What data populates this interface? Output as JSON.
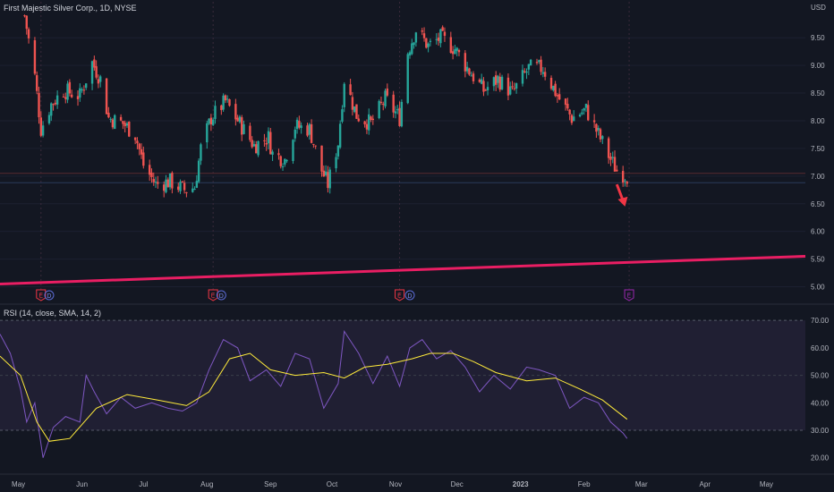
{
  "header": {
    "title": "First Majestic Silver Corp., 1D, NYSE",
    "currency": "USD"
  },
  "rsi_panel": {
    "label": "RSI (14, close, SMA, 14, 2)"
  },
  "colors": {
    "background": "#131722",
    "bullish": "#26a69a",
    "bearish": "#ef5350",
    "trendline": "#e91e63",
    "rsi_line": "#7e57c2",
    "rsi_ma": "#ffeb3b",
    "rsi_band": "#2a2540",
    "earnings_marker": "#f23645",
    "dividend_marker": "#5b6bd6",
    "upcoming_earnings": "#9c27b0"
  },
  "chart_data": [
    {
      "type": "candlestick",
      "title": "First Majestic Silver Corp., 1D, NYSE",
      "ylabel": "USD",
      "ylim": [
        4.75,
        10.15
      ],
      "y_ticks": [
        5.0,
        5.5,
        6.0,
        6.5,
        7.0,
        7.5,
        8.0,
        8.5,
        9.0,
        9.5
      ],
      "x_ticks": [
        "May",
        "Jun",
        "Jul",
        "Aug",
        "Sep",
        "Oct",
        "Nov",
        "Dec",
        "2023",
        "Feb",
        "Mar",
        "Apr",
        "May"
      ],
      "x_range": [
        "2022-04-22",
        "2023-05-20"
      ],
      "close_trend": [
        [
          "2022-05-04",
          9.9
        ],
        [
          "2022-05-09",
          8.8
        ],
        [
          "2022-05-12",
          7.85
        ],
        [
          "2022-05-17",
          8.3
        ],
        [
          "2022-05-23",
          8.55
        ],
        [
          "2022-05-31",
          8.45
        ],
        [
          "2022-06-06",
          9.05
        ],
        [
          "2022-06-10",
          8.75
        ],
        [
          "2022-06-14",
          8.05
        ],
        [
          "2022-06-21",
          7.95
        ],
        [
          "2022-06-27",
          7.75
        ],
        [
          "2022-07-01",
          7.2
        ],
        [
          "2022-07-07",
          6.85
        ],
        [
          "2022-07-14",
          6.9
        ],
        [
          "2022-07-21",
          6.75
        ],
        [
          "2022-07-26",
          6.8
        ],
        [
          "2022-07-29",
          7.5
        ],
        [
          "2022-08-03",
          8.05
        ],
        [
          "2022-08-10",
          8.35
        ],
        [
          "2022-08-17",
          7.95
        ],
        [
          "2022-08-24",
          7.55
        ],
        [
          "2022-08-31",
          7.7
        ],
        [
          "2022-09-02",
          7.4
        ],
        [
          "2022-09-08",
          7.3
        ],
        [
          "2022-09-13",
          7.9
        ],
        [
          "2022-09-20",
          7.85
        ],
        [
          "2022-09-26",
          7.1
        ],
        [
          "2022-09-29",
          6.85
        ],
        [
          "2022-10-04",
          7.6
        ],
        [
          "2022-10-07",
          8.75
        ],
        [
          "2022-10-13",
          8.1
        ],
        [
          "2022-10-20",
          7.95
        ],
        [
          "2022-10-27",
          8.4
        ],
        [
          "2022-11-03",
          8.05
        ],
        [
          "2022-11-07",
          9.25
        ],
        [
          "2022-11-11",
          9.65
        ],
        [
          "2022-11-17",
          9.35
        ],
        [
          "2022-11-23",
          9.5
        ],
        [
          "2022-11-30",
          9.3
        ],
        [
          "2022-12-07",
          8.9
        ],
        [
          "2022-12-14",
          8.55
        ],
        [
          "2022-12-21",
          8.75
        ],
        [
          "2022-12-28",
          8.5
        ],
        [
          "2023-01-05",
          8.95
        ],
        [
          "2023-01-12",
          8.95
        ],
        [
          "2023-01-19",
          8.45
        ],
        [
          "2023-01-26",
          8.05
        ],
        [
          "2023-02-02",
          8.2
        ],
        [
          "2023-02-08",
          7.75
        ],
        [
          "2023-02-14",
          7.3
        ],
        [
          "2023-02-17",
          7.1
        ],
        [
          "2023-02-22",
          7.0
        ]
      ],
      "last_price": 7.05,
      "reference_level": 6.88,
      "trendline": {
        "start": [
          "2022-04-22",
          5.05
        ],
        "end": [
          "2023-05-20",
          5.55
        ]
      },
      "arrow": {
        "from": [
          "2023-02-17",
          6.85
        ],
        "to": [
          "2023-02-21",
          6.45
        ]
      },
      "event_lines": [
        "2022-05-12",
        "2022-08-04",
        "2022-11-03",
        "2023-02-23"
      ],
      "events": [
        {
          "date": "2022-05-12",
          "type": "earnings",
          "label": "E"
        },
        {
          "date": "2022-05-16",
          "type": "dividend",
          "label": "D"
        },
        {
          "date": "2022-08-04",
          "type": "earnings",
          "label": "E"
        },
        {
          "date": "2022-08-08",
          "type": "dividend",
          "label": "D"
        },
        {
          "date": "2022-11-03",
          "type": "earnings",
          "label": "E"
        },
        {
          "date": "2022-11-08",
          "type": "dividend",
          "label": "D"
        },
        {
          "date": "2023-02-23",
          "type": "upcoming-earnings",
          "label": "E"
        }
      ]
    },
    {
      "type": "line",
      "title": "RSI (14, close, SMA, 14, 2)",
      "ylim": [
        16,
        72
      ],
      "y_ticks": [
        20.0,
        30.0,
        40.0,
        50.0,
        60.0,
        70.0
      ],
      "band": [
        30,
        70
      ],
      "series": [
        {
          "name": "RSI",
          "points": [
            [
              "2022-04-22",
              65
            ],
            [
              "2022-04-27",
              58
            ],
            [
              "2022-05-02",
              45
            ],
            [
              "2022-05-05",
              33
            ],
            [
              "2022-05-09",
              40
            ],
            [
              "2022-05-13",
              20
            ],
            [
              "2022-05-18",
              31
            ],
            [
              "2022-05-24",
              35
            ],
            [
              "2022-05-31",
              33
            ],
            [
              "2022-06-03",
              50
            ],
            [
              "2022-06-07",
              44
            ],
            [
              "2022-06-13",
              36
            ],
            [
              "2022-06-20",
              42
            ],
            [
              "2022-06-27",
              38
            ],
            [
              "2022-07-05",
              40
            ],
            [
              "2022-07-13",
              38
            ],
            [
              "2022-07-20",
              37
            ],
            [
              "2022-07-27",
              40
            ],
            [
              "2022-08-02",
              52
            ],
            [
              "2022-08-09",
              63
            ],
            [
              "2022-08-16",
              60
            ],
            [
              "2022-08-22",
              48
            ],
            [
              "2022-08-30",
              52
            ],
            [
              "2022-09-06",
              46
            ],
            [
              "2022-09-13",
              58
            ],
            [
              "2022-09-20",
              56
            ],
            [
              "2022-09-27",
              38
            ],
            [
              "2022-10-04",
              47
            ],
            [
              "2022-10-07",
              66
            ],
            [
              "2022-10-14",
              58
            ],
            [
              "2022-10-21",
              47
            ],
            [
              "2022-10-28",
              57
            ],
            [
              "2022-11-03",
              46
            ],
            [
              "2022-11-08",
              60
            ],
            [
              "2022-11-14",
              63
            ],
            [
              "2022-11-21",
              56
            ],
            [
              "2022-11-28",
              59
            ],
            [
              "2022-12-05",
              53
            ],
            [
              "2022-12-12",
              44
            ],
            [
              "2022-12-19",
              50
            ],
            [
              "2022-12-27",
              45
            ],
            [
              "2023-01-04",
              53
            ],
            [
              "2023-01-10",
              52
            ],
            [
              "2023-01-18",
              50
            ],
            [
              "2023-01-25",
              38
            ],
            [
              "2023-02-01",
              42
            ],
            [
              "2023-02-08",
              40
            ],
            [
              "2023-02-14",
              33
            ],
            [
              "2023-02-20",
              29
            ],
            [
              "2023-02-22",
              27
            ]
          ]
        },
        {
          "name": "RSI-based MA",
          "points": [
            [
              "2022-04-22",
              57
            ],
            [
              "2022-05-02",
              50
            ],
            [
              "2022-05-10",
              33
            ],
            [
              "2022-05-16",
              26
            ],
            [
              "2022-05-26",
              27
            ],
            [
              "2022-06-08",
              38
            ],
            [
              "2022-06-23",
              43
            ],
            [
              "2022-07-08",
              41
            ],
            [
              "2022-07-22",
              39
            ],
            [
              "2022-08-02",
              44
            ],
            [
              "2022-08-12",
              56
            ],
            [
              "2022-08-22",
              58
            ],
            [
              "2022-09-01",
              52
            ],
            [
              "2022-09-13",
              50
            ],
            [
              "2022-09-27",
              51
            ],
            [
              "2022-10-07",
              49
            ],
            [
              "2022-10-17",
              53
            ],
            [
              "2022-10-28",
              54
            ],
            [
              "2022-11-09",
              56
            ],
            [
              "2022-11-18",
              58
            ],
            [
              "2022-11-29",
              58
            ],
            [
              "2022-12-09",
              55
            ],
            [
              "2022-12-20",
              51
            ],
            [
              "2023-01-04",
              48
            ],
            [
              "2023-01-18",
              49
            ],
            [
              "2023-01-30",
              45
            ],
            [
              "2023-02-10",
              41
            ],
            [
              "2023-02-22",
              34
            ]
          ]
        }
      ]
    }
  ]
}
